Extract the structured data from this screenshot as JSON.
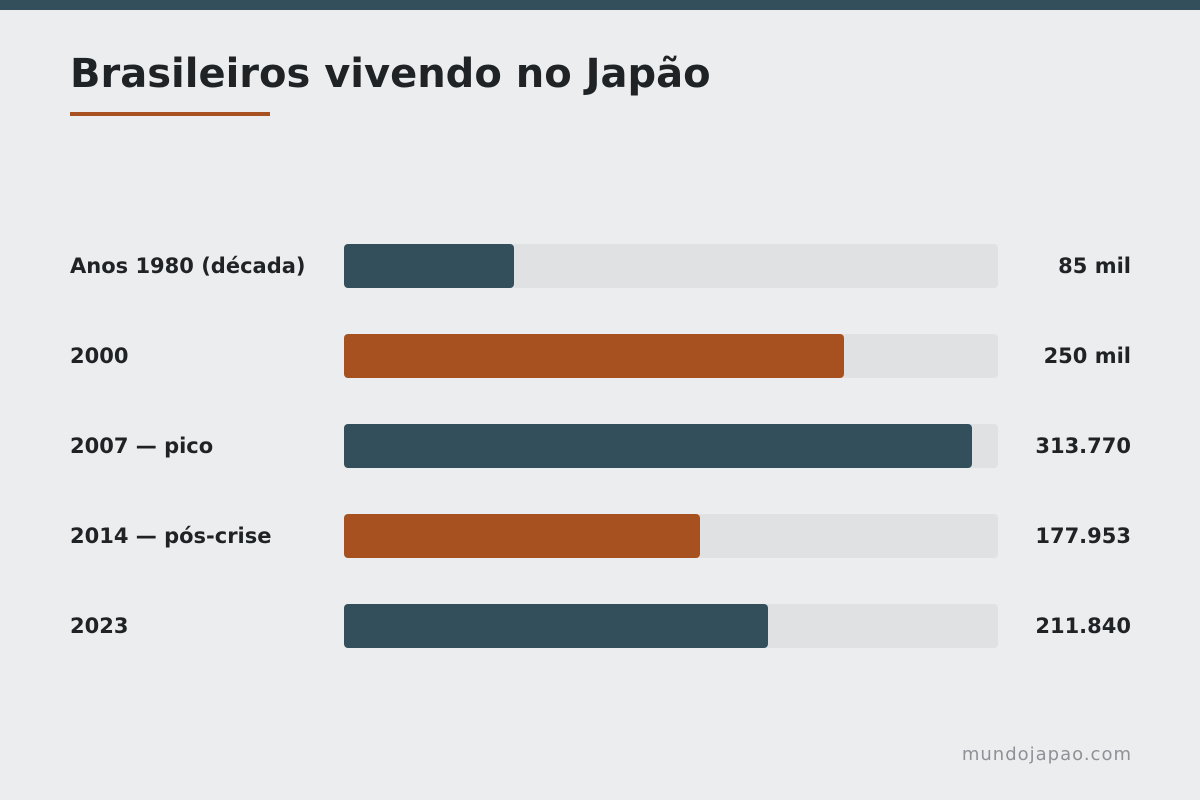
{
  "header": {
    "title": "Brasileiros vivendo no Japão"
  },
  "footer": {
    "source": "mundojapao.com"
  },
  "colors": {
    "stripe": "#334f5c",
    "accent": "#a85120",
    "bar_primary": "#334f5c",
    "bar_secondary": "#a85120",
    "track": "#e0e1e3",
    "background": "#ecedef"
  },
  "chart_data": {
    "type": "bar",
    "orientation": "horizontal",
    "title": "Brasileiros vivendo no Japão",
    "categories": [
      "Anos 1980 (década)",
      "2000",
      "2007 — pico",
      "2014 — pós-crise",
      "2023"
    ],
    "values": [
      85000,
      250000,
      313770,
      177953,
      211840
    ],
    "value_labels": [
      "85 mil",
      "250 mil",
      "313.770",
      "177.953",
      "211.840"
    ],
    "bar_colors": [
      "#334f5c",
      "#a85120",
      "#334f5c",
      "#a85120",
      "#334f5c"
    ],
    "xlim": [
      0,
      327000
    ],
    "grid": false,
    "legend": "none"
  }
}
